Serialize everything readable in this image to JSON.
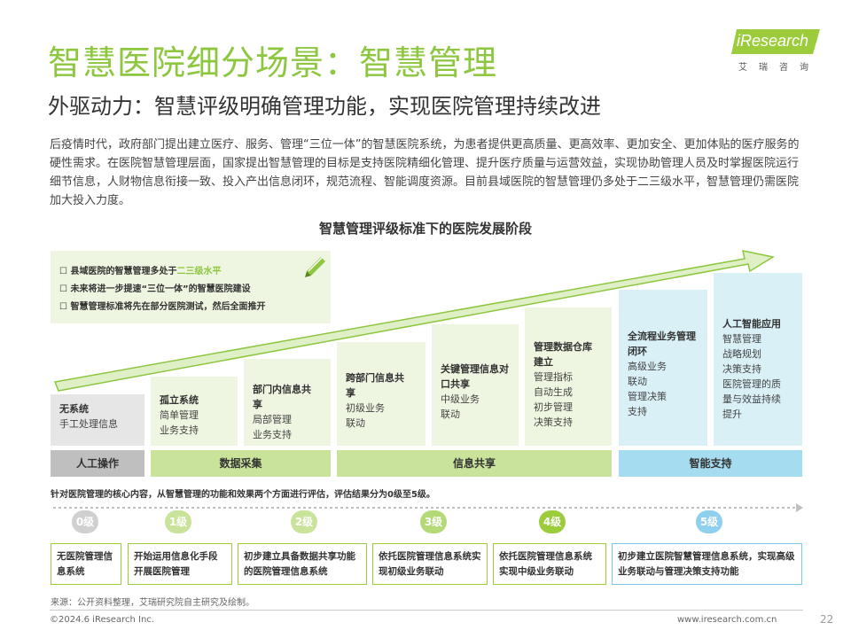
{
  "header": {
    "title": "智慧医院细分场景：智慧管理",
    "subtitle": "外驱动力：智慧评级明确管理功能，实现医院管理持续改进",
    "logo_text": "iResearch",
    "logo_sub": "艾瑞咨询"
  },
  "intro": "后疫情时代，政府部门提出建立医疗、服务、管理“三位一体”的智慧医院系统，为患者提供更高质量、更高效率、更加安全、更加体贴的医疗服务的硬性需求。在医院智慧管理层面，国家提出智慧管理的目标是支持医院精细化管理、提升医疗质量与运营效益，实现协助管理人员及时掌握医院运行细节信息，人财物信息衔接一致、投入产出信息闭环，规范流程、智能调度资源。目前县域医院的智慧管理仍多处于二三级水平，智慧管理仍需医院加大投入力度。",
  "diagram": {
    "title": "智慧管理评级标准下的医院发展阶段",
    "callout": [
      {
        "prefix": "县域医院的智慧管理多处于",
        "highlight": "二三级水平"
      },
      {
        "prefix": "未来将进一步提速“三位一体”的智慧医院建设",
        "highlight": ""
      },
      {
        "prefix": "智慧管理标准将先在部分医院测试，然后全面推开",
        "highlight": ""
      }
    ],
    "stages": [
      {
        "title": "无系统",
        "lines": [
          "手工处理信息"
        ]
      },
      {
        "title": "孤立系统",
        "lines": [
          "简单管理",
          "业务支持"
        ]
      },
      {
        "title": "部门内信息共享",
        "lines": [
          "局部管理",
          "业务支持"
        ]
      },
      {
        "title": "跨部门信息共享",
        "lines": [
          "初级业务",
          "联动"
        ]
      },
      {
        "title": "关键管理信息对口共享",
        "lines": [
          "中级业务",
          "联动"
        ]
      },
      {
        "title": "管理数据仓库建立",
        "lines": [
          "管理指标",
          "自动生成",
          "初步管理",
          "决策支持"
        ]
      },
      {
        "title": "全流程业务管理闭环",
        "lines": [
          "高级业务",
          "联动",
          "管理决策",
          "支持"
        ]
      },
      {
        "title": "人工智能应用",
        "lines": [
          "智慧管理",
          "战略规划",
          "决策支持",
          "医院管理的质",
          "量与效益持续",
          "提升"
        ]
      }
    ],
    "categories": [
      "人工操作",
      "数据采集",
      "信息共享",
      "智能支持"
    ],
    "note": "针对医院管理的核心内容，从智慧管理的功能和效果两个方面进行评估，评估结果分为0级至5级。",
    "levels": [
      {
        "label": "0级",
        "desc": "无医院管理信息系统"
      },
      {
        "label": "1级",
        "desc": "开始运用信息化手段开展医院管理"
      },
      {
        "label": "2级",
        "desc": "初步建立具备数据共享功能的医院管理信息系统"
      },
      {
        "label": "3级",
        "desc": "依托医院管理信息系统实现初级业务联动"
      },
      {
        "label": "4级",
        "desc": "依托医院管理信息系统实现中级业务联动"
      },
      {
        "label": "5级",
        "desc": "初步建立医院智慧管理信息系统，实现高级业务联动与管理决策支持功能"
      }
    ],
    "colors": {
      "gray": "#e6e6e6",
      "gray_dark": "#bfbfbf",
      "green_light": "#eef5e1",
      "green": "#c9e39a",
      "green_dark": "#9ccc3c",
      "blue_light": "#d9f0f7",
      "blue": "#a6dcef",
      "blue_dark": "#5bc0e6"
    }
  },
  "footer": {
    "source": "来源：公开资料整理，艾瑞研究院自主研究及绘制。",
    "copyright": "©2024.6 iResearch Inc.",
    "website": "www.iresearch.com.cn",
    "page": "22"
  }
}
